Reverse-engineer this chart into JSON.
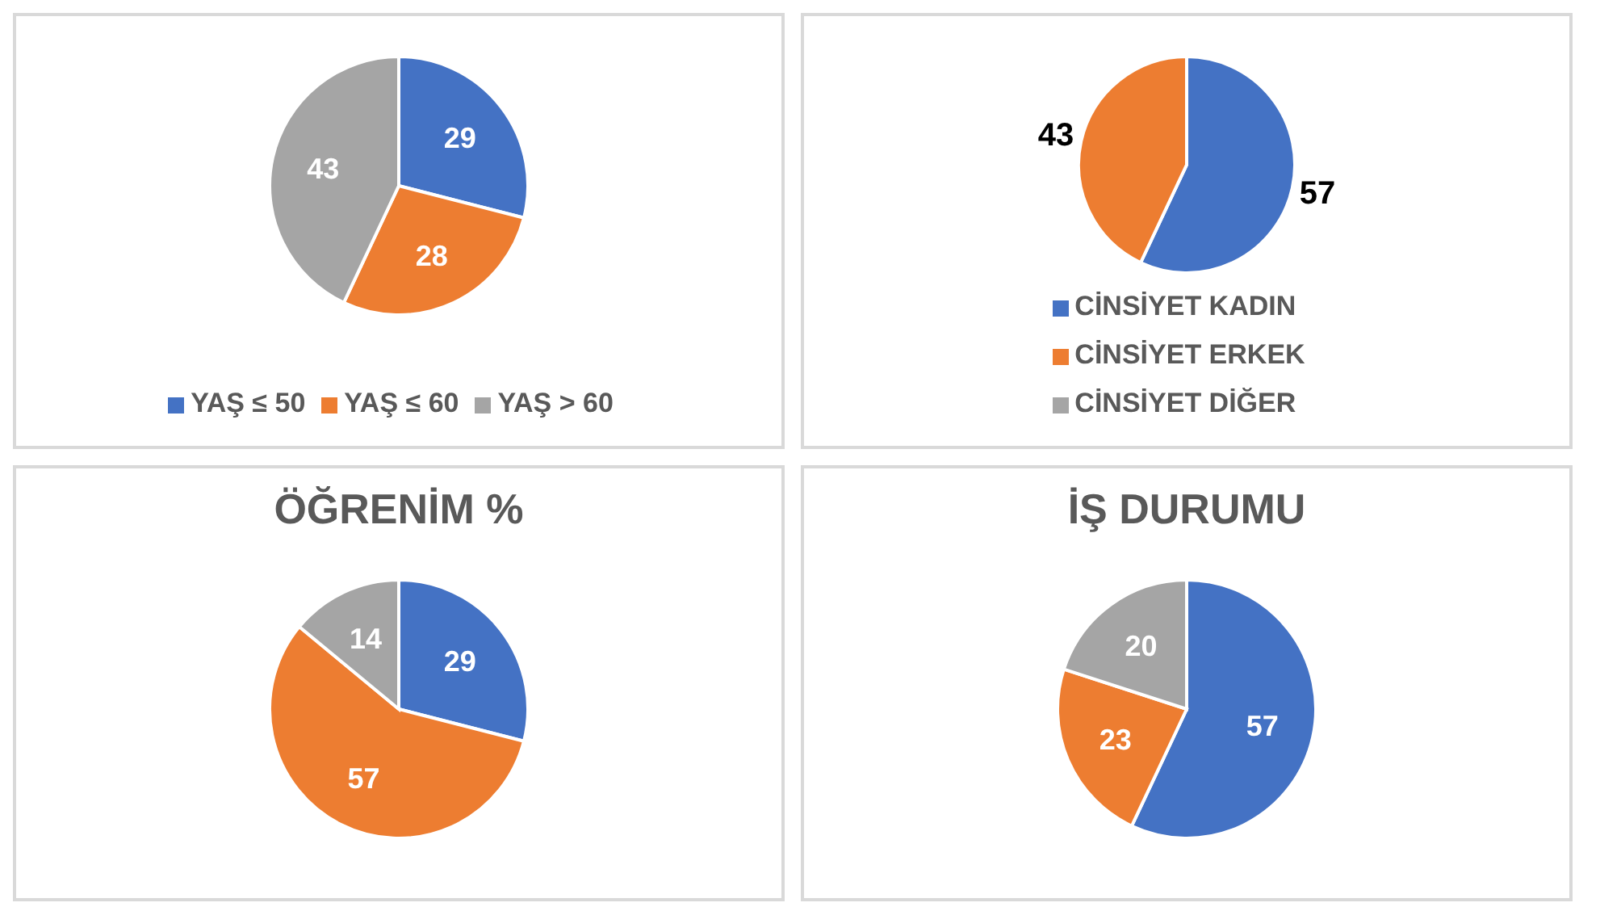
{
  "chart_data": [
    {
      "type": "pie",
      "categories": [
        "YAŞ ≤ 50",
        "YAŞ ≤ 60",
        "YAŞ > 60"
      ],
      "values": [
        29,
        28,
        43
      ],
      "colors": [
        "#4472c4",
        "#ed7d31",
        "#a5a5a5"
      ],
      "data_labels": true,
      "legend": "bottom"
    },
    {
      "type": "pie",
      "categories": [
        "CİNSİYET KADIN",
        "CİNSİYET ERKEK",
        "CİNSİYET DİĞER"
      ],
      "values": [
        57,
        43,
        0
      ],
      "colors": [
        "#4472c4",
        "#ed7d31",
        "#a5a5a5"
      ],
      "value_labels": [
        "57",
        "43",
        null
      ],
      "legend": "bottom"
    },
    {
      "type": "pie",
      "title": "ÖĞRENİM %",
      "categories": [
        null,
        null,
        null
      ],
      "values": [
        29,
        57,
        14
      ],
      "colors": [
        "#4472c4",
        "#ed7d31",
        "#a5a5a5"
      ],
      "data_labels": true
    },
    {
      "type": "pie",
      "title": "İŞ DURUMU",
      "categories": [
        null,
        null,
        null
      ],
      "values": [
        57,
        23,
        20
      ],
      "colors": [
        "#4472c4",
        "#ed7d31",
        "#a5a5a5"
      ],
      "data_labels": true
    }
  ]
}
